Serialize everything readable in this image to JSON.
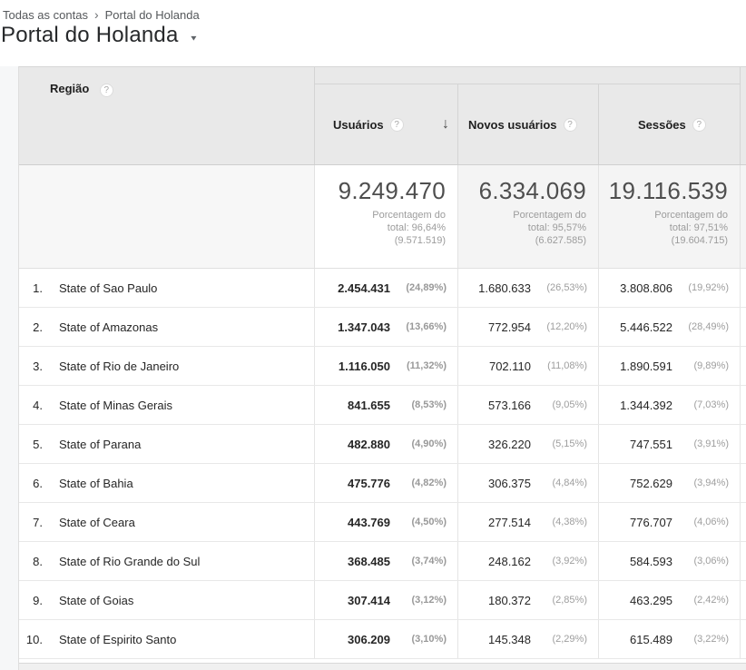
{
  "colors": {
    "header_bg": "#e9e9e9",
    "totals_muted_bg": "#f4f4f4",
    "sorted_totals_bg": "#ffffff",
    "row_border": "#e8e8e8",
    "pct_text": "#9e9e9e"
  },
  "breadcrumb": {
    "items": [
      "Todas as contas",
      "Portal do Holanda"
    ],
    "separator": "›"
  },
  "header": {
    "title": "Portal do Holanda",
    "caret_icon": "▼"
  },
  "table": {
    "dimension": {
      "label": "Região",
      "help_icon": "?"
    },
    "columns": [
      {
        "label": "Usuários",
        "help_icon": "?",
        "sort_icon": "↓"
      },
      {
        "label": "Novos usuários",
        "help_icon": "?"
      },
      {
        "label": "Sessões",
        "help_icon": "?"
      }
    ],
    "totals": [
      {
        "value": "9.249.470",
        "pct_line1": "Porcentagem do",
        "pct_line2": "total: 96,64%",
        "pct_line3": "(9.571.519)"
      },
      {
        "value": "6.334.069",
        "pct_line1": "Porcentagem do",
        "pct_line2": "total: 95,57%",
        "pct_line3": "(6.627.585)"
      },
      {
        "value": "19.116.539",
        "pct_line1": "Porcentagem do",
        "pct_line2": "total: 97,51%",
        "pct_line3": "(19.604.715)"
      }
    ],
    "rows": [
      {
        "rank": "1.",
        "region": "State of Sao Paulo",
        "users": "2.454.431",
        "users_pct": "(24,89%)",
        "new_users": "1.680.633",
        "new_users_pct": "(26,53%)",
        "sessions": "3.808.806",
        "sessions_pct": "(19,92%)"
      },
      {
        "rank": "2.",
        "region": "State of Amazonas",
        "users": "1.347.043",
        "users_pct": "(13,66%)",
        "new_users": "772.954",
        "new_users_pct": "(12,20%)",
        "sessions": "5.446.522",
        "sessions_pct": "(28,49%)"
      },
      {
        "rank": "3.",
        "region": "State of Rio de Janeiro",
        "users": "1.116.050",
        "users_pct": "(11,32%)",
        "new_users": "702.110",
        "new_users_pct": "(11,08%)",
        "sessions": "1.890.591",
        "sessions_pct": "(9,89%)"
      },
      {
        "rank": "4.",
        "region": "State of Minas Gerais",
        "users": "841.655",
        "users_pct": "(8,53%)",
        "new_users": "573.166",
        "new_users_pct": "(9,05%)",
        "sessions": "1.344.392",
        "sessions_pct": "(7,03%)"
      },
      {
        "rank": "5.",
        "region": "State of Parana",
        "users": "482.880",
        "users_pct": "(4,90%)",
        "new_users": "326.220",
        "new_users_pct": "(5,15%)",
        "sessions": "747.551",
        "sessions_pct": "(3,91%)"
      },
      {
        "rank": "6.",
        "region": "State of Bahia",
        "users": "475.776",
        "users_pct": "(4,82%)",
        "new_users": "306.375",
        "new_users_pct": "(4,84%)",
        "sessions": "752.629",
        "sessions_pct": "(3,94%)"
      },
      {
        "rank": "7.",
        "region": "State of Ceara",
        "users": "443.769",
        "users_pct": "(4,50%)",
        "new_users": "277.514",
        "new_users_pct": "(4,38%)",
        "sessions": "776.707",
        "sessions_pct": "(4,06%)"
      },
      {
        "rank": "8.",
        "region": "State of Rio Grande do Sul",
        "users": "368.485",
        "users_pct": "(3,74%)",
        "new_users": "248.162",
        "new_users_pct": "(3,92%)",
        "sessions": "584.593",
        "sessions_pct": "(3,06%)"
      },
      {
        "rank": "9.",
        "region": "State of Goias",
        "users": "307.414",
        "users_pct": "(3,12%)",
        "new_users": "180.372",
        "new_users_pct": "(2,85%)",
        "sessions": "463.295",
        "sessions_pct": "(2,42%)"
      },
      {
        "rank": "10.",
        "region": "State of Espirito Santo",
        "users": "306.209",
        "users_pct": "(3,10%)",
        "new_users": "145.348",
        "new_users_pct": "(2,29%)",
        "sessions": "615.489",
        "sessions_pct": "(3,22%)"
      }
    ]
  }
}
